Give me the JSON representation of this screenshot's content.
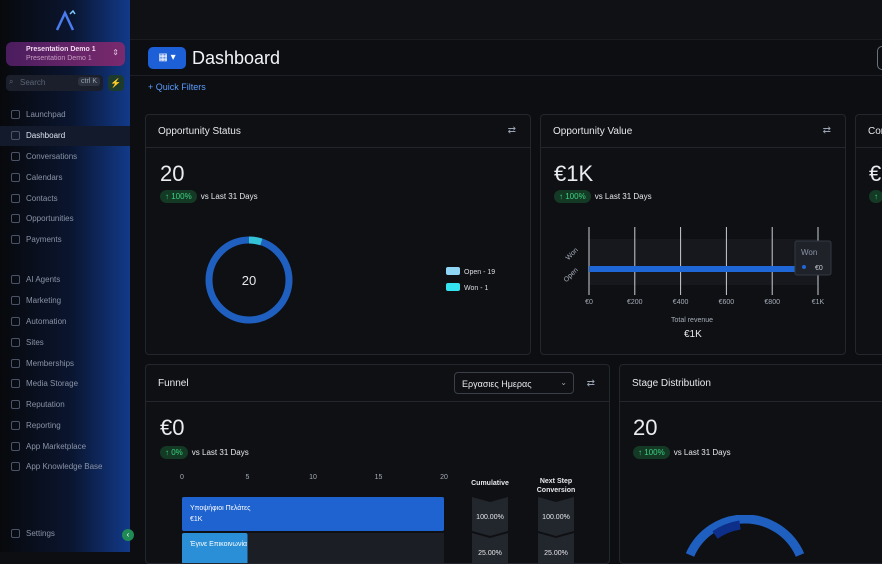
{
  "sidebar": {
    "location": {
      "name": "Presentation Demo 1",
      "sub": "Presentation Demo 1"
    },
    "search": {
      "placeholder": "Search",
      "shortcut": "ctrl K"
    },
    "items": [
      {
        "label": "Launchpad",
        "icon": "rocket-icon"
      },
      {
        "label": "Dashboard",
        "icon": "dashboard-icon",
        "active": true
      },
      {
        "label": "Conversations",
        "icon": "chat-icon"
      },
      {
        "label": "Calendars",
        "icon": "calendar-icon"
      },
      {
        "label": "Contacts",
        "icon": "contacts-icon"
      },
      {
        "label": "Opportunities",
        "icon": "funnel-icon"
      },
      {
        "label": "Payments",
        "icon": "payments-icon"
      },
      {
        "label": "AI Agents",
        "icon": "ai-icon"
      },
      {
        "label": "Marketing",
        "icon": "marketing-icon"
      },
      {
        "label": "Automation",
        "icon": "automation-icon"
      },
      {
        "label": "Sites",
        "icon": "globe-icon"
      },
      {
        "label": "Memberships",
        "icon": "membership-icon"
      },
      {
        "label": "Media Storage",
        "icon": "folder-icon"
      },
      {
        "label": "Reputation",
        "icon": "star-icon"
      },
      {
        "label": "Reporting",
        "icon": "reporting-icon"
      },
      {
        "label": "App Marketplace",
        "icon": "marketplace-icon"
      },
      {
        "label": "App Knowledge Base",
        "icon": "knowledge-icon"
      }
    ],
    "settings": "Settings"
  },
  "header": {
    "title": "Dashboard",
    "quick_filters": "+ Quick Filters"
  },
  "cards": {
    "status": {
      "title": "Opportunity Status",
      "value": "20",
      "change": "100%",
      "period": "vs Last 31 Days",
      "donut_center": "20",
      "legend": [
        {
          "label": "Open - 19",
          "color": "#1f5fc0"
        },
        {
          "label": "Won - 1",
          "color": "#34c3d6"
        }
      ],
      "open": 19,
      "won": 1
    },
    "value": {
      "title": "Opportunity Value",
      "value": "€1K",
      "change": "100%",
      "period": "vs Last 31 Days",
      "total_label": "Total revenue",
      "total_value": "€1K",
      "tooltip": {
        "label": "Won",
        "value": "€0"
      }
    },
    "third": {
      "title": "Cor",
      "value": "€"
    },
    "funnel": {
      "title": "Funnel",
      "value": "€0",
      "change": "0%",
      "period": "vs Last 31 Days",
      "dropdown": "Εργασιες Ημερας",
      "bars": [
        {
          "label": "Υποψήφιοι Πελάτες",
          "sub": "€1K",
          "cumulative": "100.00%",
          "next": "100.00%",
          "value": 20
        },
        {
          "label": "Έγινε Επικοινωνία",
          "sub": "",
          "cumulative": "25.00%",
          "next": "25.00%",
          "value": 5
        }
      ],
      "cumulative_header": "Cumulative",
      "next_header": "Next Step Conversion"
    },
    "stage": {
      "title": "Stage Distribution",
      "value": "20",
      "change": "100%",
      "period": "vs Last 31 Days"
    }
  },
  "chart_data": [
    {
      "type": "pie",
      "categories": [
        "Open - 19",
        "Won - 1"
      ],
      "values": [
        19,
        1
      ]
    },
    {
      "type": "bar",
      "orientation": "horizontal",
      "categories": [
        "Won",
        "Open"
      ],
      "values": [
        0,
        950
      ],
      "xlim": [
        0,
        1000
      ],
      "xticks": [
        "€0",
        "€200",
        "€400",
        "€600",
        "€800",
        "€1K"
      ],
      "xlabel": "Total revenue"
    },
    {
      "type": "bar",
      "orientation": "horizontal",
      "categories": [
        "Υποψήφιοι Πελάτες",
        "Έγινε Επικοινωνία"
      ],
      "values": [
        20,
        5
      ],
      "xlim": [
        0,
        20
      ],
      "xticks": [
        "0",
        "5",
        "10",
        "15",
        "20"
      ]
    }
  ]
}
